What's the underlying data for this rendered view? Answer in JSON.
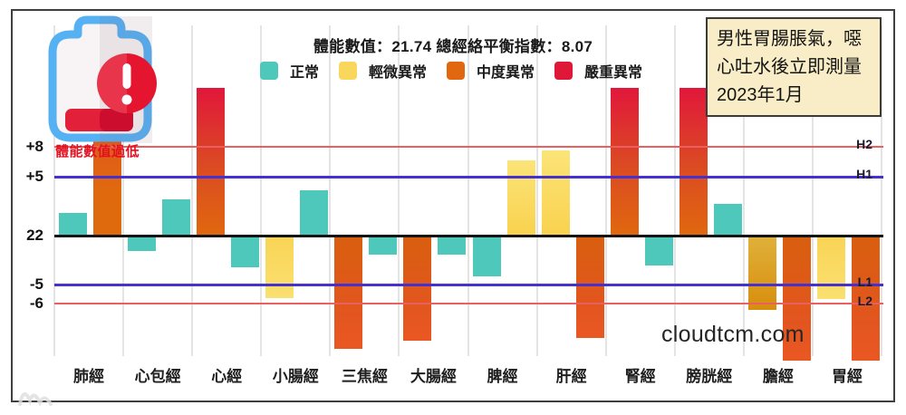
{
  "header": {
    "low_energy_warning": "體能數值過低",
    "watermark": "cloudtcm.com"
  },
  "annotation": {
    "lines": [
      "男性胃腸脹氣，噁",
      "心吐水後立即測量",
      "2023年1月"
    ]
  },
  "legend": [
    {
      "label": "正常",
      "color": "teal"
    },
    {
      "label": "輕微異常",
      "color": "yellow"
    },
    {
      "label": "中度異常",
      "color": "orange"
    },
    {
      "label": "嚴重異常",
      "color": "red"
    }
  ],
  "colors": {
    "teal": "#4DC8BB",
    "yellow": "#F9D75C",
    "orange": "#E2680F",
    "red": "#DF1739",
    "threshold_red": "#E96060",
    "threshold_blue": "#4431CE",
    "baseline": "#141414",
    "annotation_bg": "#F8EDC6",
    "warning_text": "#E3101F"
  },
  "chart_data": {
    "type": "bar",
    "title": "體能數值：21.74 總經絡平衡指數：8.07",
    "ylabel": "",
    "xlabel": "",
    "ylim": [
      -11.5,
      13.5
    ],
    "grid": "vertical-light",
    "legend_position": "top",
    "baseline": {
      "axis_label": "22",
      "value": 0
    },
    "thresholds": [
      {
        "id": "H2",
        "axis_label": "+8",
        "line_label": "H2",
        "value": 8,
        "color": "red"
      },
      {
        "id": "H1",
        "axis_label": "+5",
        "line_label": "H1",
        "value": 5,
        "color": "blue"
      },
      {
        "id": "L1",
        "axis_label": "-5",
        "line_label": "L1",
        "value": -5,
        "color": "blue"
      },
      {
        "id": "L2",
        "axis_label": "-6",
        "line_label": "L2",
        "value": -6,
        "color": "red"
      }
    ],
    "categories": [
      "肺經",
      "心包經",
      "心經",
      "小腸經",
      "三焦經",
      "大腸經",
      "脾經",
      "肝經",
      "腎經",
      "膀胱經",
      "膽經",
      "胃經"
    ],
    "groups": [
      {
        "category": "肺經",
        "bars": [
          {
            "side": "left",
            "value": 2.1,
            "status": "正常",
            "color": "teal"
          },
          {
            "side": "right",
            "value": 8.9,
            "status": "中度異常",
            "color": "orange_up"
          }
        ]
      },
      {
        "category": "心包經",
        "bars": [
          {
            "side": "left",
            "value": -1.4,
            "status": "正常",
            "color": "teal"
          },
          {
            "side": "right",
            "value": 3.3,
            "status": "正常",
            "color": "teal"
          }
        ]
      },
      {
        "category": "心經",
        "bars": [
          {
            "side": "left",
            "value": 13.5,
            "status": "嚴重異常",
            "color": "red_up"
          },
          {
            "side": "right",
            "value": -2.9,
            "status": "正常",
            "color": "teal"
          }
        ]
      },
      {
        "category": "小腸經",
        "bars": [
          {
            "side": "left",
            "value": -5.7,
            "status": "輕微異常",
            "color": "yellow_down"
          },
          {
            "side": "right",
            "value": 4.1,
            "status": "正常",
            "color": "teal"
          }
        ]
      },
      {
        "category": "三焦經",
        "bars": [
          {
            "side": "left",
            "value": -10.3,
            "status": "中度異常",
            "color": "orange_down"
          },
          {
            "side": "right",
            "value": -1.7,
            "status": "正常",
            "color": "teal"
          }
        ]
      },
      {
        "category": "大腸經",
        "bars": [
          {
            "side": "left",
            "value": -9.6,
            "status": "中度異常",
            "color": "orange_down"
          },
          {
            "side": "right",
            "value": -1.7,
            "status": "正常",
            "color": "teal"
          }
        ]
      },
      {
        "category": "脾經",
        "bars": [
          {
            "side": "left",
            "value": -3.7,
            "status": "正常",
            "color": "teal"
          },
          {
            "side": "right",
            "value": 6.9,
            "status": "輕微異常",
            "color": "yellow_up"
          }
        ]
      },
      {
        "category": "肝經",
        "bars": [
          {
            "side": "left",
            "value": 7.8,
            "status": "輕微異常",
            "color": "yellow_up"
          },
          {
            "side": "right",
            "value": -9.3,
            "status": "中度異常",
            "color": "orange_down"
          }
        ]
      },
      {
        "category": "腎經",
        "bars": [
          {
            "side": "left",
            "value": 13.5,
            "status": "嚴重異常",
            "color": "red_up"
          },
          {
            "side": "right",
            "value": -2.7,
            "status": "正常",
            "color": "teal"
          }
        ]
      },
      {
        "category": "膀胱經",
        "bars": [
          {
            "side": "left",
            "value": 13.5,
            "status": "嚴重異常",
            "color": "red_up"
          },
          {
            "side": "right",
            "value": 2.9,
            "status": "正常",
            "color": "teal"
          }
        ]
      },
      {
        "category": "膽經",
        "bars": [
          {
            "side": "left",
            "value": -6.8,
            "status": "中度異常",
            "color": "gold_down"
          },
          {
            "side": "right",
            "value": -11.4,
            "status": "中度異常",
            "color": "orange_down"
          }
        ]
      },
      {
        "category": "胃經",
        "bars": [
          {
            "side": "left",
            "value": -5.8,
            "status": "輕微異常",
            "color": "yellow_down"
          },
          {
            "side": "right",
            "value": -11.4,
            "status": "中度異常",
            "color": "orange_down"
          }
        ]
      }
    ]
  }
}
